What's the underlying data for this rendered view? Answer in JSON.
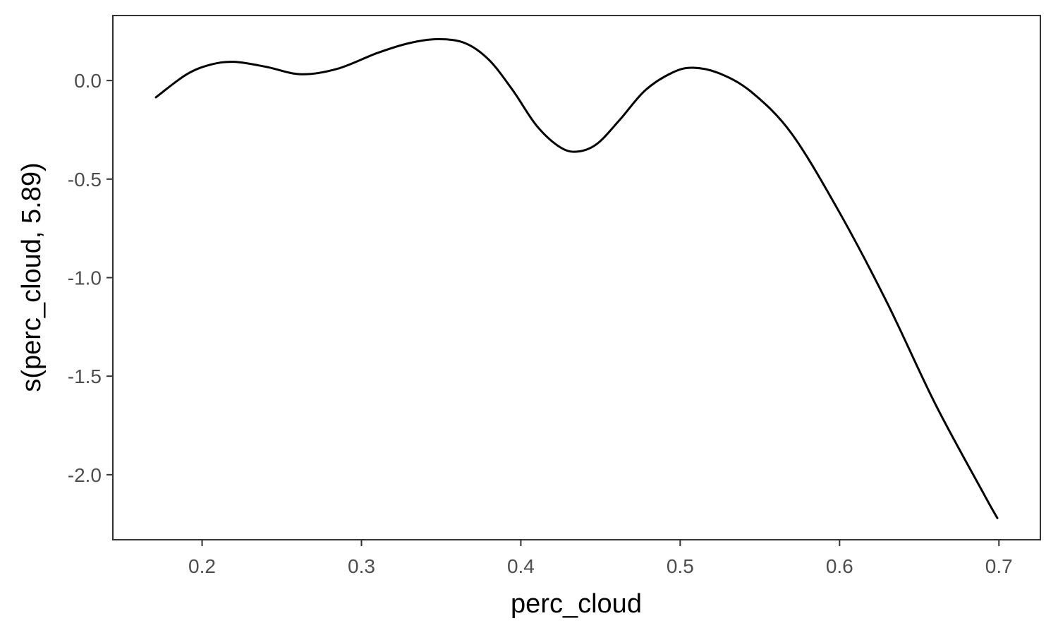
{
  "chart_data": {
    "type": "line",
    "title": "",
    "xlabel": "perc_cloud",
    "ylabel": "s(perc_cloud, 5.89)",
    "xlim": [
      0.144,
      0.726
    ],
    "ylim": [
      -2.33,
      0.33
    ],
    "grid": false,
    "x_ticks": [
      0.2,
      0.3,
      0.4,
      0.5,
      0.6,
      0.7
    ],
    "x_tick_labels": [
      "0.2",
      "0.3",
      "0.4",
      "0.5",
      "0.6",
      "0.7"
    ],
    "y_ticks": [
      0.0,
      -0.5,
      -1.0,
      -1.5,
      -2.0
    ],
    "y_tick_labels": [
      "0.0",
      "-0.5",
      "-1.0",
      "-1.5",
      "-2.0"
    ],
    "series": [
      {
        "name": "s(perc_cloud, 5.89)",
        "color": "#000000",
        "x": [
          0.171,
          0.19,
          0.205,
          0.22,
          0.24,
          0.262,
          0.285,
          0.31,
          0.33,
          0.348,
          0.365,
          0.38,
          0.395,
          0.41,
          0.425,
          0.436,
          0.448,
          0.462,
          0.478,
          0.495,
          0.508,
          0.525,
          0.545,
          0.57,
          0.6,
          0.63,
          0.66,
          0.69,
          0.699
        ],
        "y": [
          -0.085,
          0.03,
          0.08,
          0.095,
          0.07,
          0.032,
          0.06,
          0.14,
          0.19,
          0.21,
          0.19,
          0.105,
          -0.05,
          -0.23,
          -0.34,
          -0.36,
          -0.32,
          -0.2,
          -0.05,
          0.04,
          0.065,
          0.035,
          -0.06,
          -0.27,
          -0.67,
          -1.13,
          -1.64,
          -2.09,
          -2.22
        ]
      }
    ]
  }
}
